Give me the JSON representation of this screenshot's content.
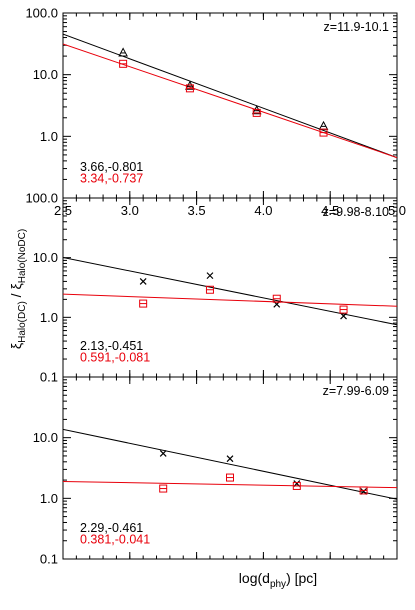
{
  "figure": {
    "xlabel_main": "log(d",
    "xlabel_sub": "phy",
    "xlabel_tail": ") [pc]",
    "ylabel_xi_a": "ξ",
    "ylabel_sub_a": "Halo(DC)",
    "ylabel_sep": " / ",
    "ylabel_xi_b": "ξ",
    "ylabel_sub_b": "Halo(NoDC)"
  },
  "colors": {
    "black": "#000000",
    "red": "#e8000b"
  },
  "chart_data": [
    {
      "type": "scatter",
      "title": "z=11.9-10.1",
      "xlim": [
        2.5,
        5.0
      ],
      "ylim": [
        0.1,
        100
      ],
      "yscale": "log",
      "grid": false,
      "xticklabels": [
        "2.5",
        "3.0",
        "3.5",
        "4.0",
        "4.5",
        "5.0"
      ],
      "yticks": [
        1.0,
        10.0,
        100.0
      ],
      "yticklabels": [
        "1.0",
        "10.0",
        "100.0"
      ],
      "series": [
        {
          "color": "black",
          "marker": "triangle",
          "x": [
            2.95,
            3.45,
            3.95,
            4.45
          ],
          "y": [
            22.5,
            6.5,
            2.6,
            1.45
          ]
        },
        {
          "color": "red",
          "marker": "square",
          "x": [
            2.95,
            3.45,
            3.95,
            4.45
          ],
          "y": [
            15.0,
            6.0,
            2.4,
            1.15
          ]
        }
      ],
      "fits": [
        {
          "color": "black",
          "intercept": 3.66,
          "slope": -0.801,
          "label": "3.66,-0.801"
        },
        {
          "color": "red",
          "intercept": 3.34,
          "slope": -0.737,
          "label": "3.34,-0.737"
        }
      ]
    },
    {
      "type": "scatter",
      "title": "z=9.98-8.10",
      "xlim": [
        2.5,
        5.0
      ],
      "ylim": [
        0.1,
        100
      ],
      "yscale": "log",
      "grid": false,
      "xticklabels": [],
      "yticks": [
        0.1,
        1.0,
        10.0,
        100.0
      ],
      "yticklabels": [
        "0.1",
        "1.0",
        "10.0",
        "100.0"
      ],
      "series": [
        {
          "color": "black",
          "marker": "cross",
          "x": [
            3.1,
            3.6,
            4.1,
            4.6
          ],
          "y": [
            4.0,
            5.0,
            1.65,
            1.05
          ]
        },
        {
          "color": "red",
          "marker": "square",
          "x": [
            3.1,
            3.6,
            4.1,
            4.6
          ],
          "y": [
            1.7,
            2.9,
            2.05,
            1.35
          ]
        }
      ],
      "fits": [
        {
          "color": "black",
          "intercept": 2.13,
          "slope": -0.451,
          "label": "2.13,-0.451"
        },
        {
          "color": "red",
          "intercept": 0.591,
          "slope": -0.081,
          "label": "0.591,-0.081"
        }
      ]
    },
    {
      "type": "scatter",
      "title": "z=7.99-6.09",
      "xlim": [
        2.5,
        5.0
      ],
      "ylim": [
        0.1,
        100
      ],
      "yscale": "log",
      "grid": false,
      "xticklabels": [],
      "yticks": [
        0.1,
        1.0,
        10.0
      ],
      "yticklabels": [
        "0.1",
        "1.0",
        "10.0"
      ],
      "series": [
        {
          "color": "black",
          "marker": "cross",
          "x": [
            3.25,
            3.75,
            4.25,
            4.75
          ],
          "y": [
            5.5,
            4.5,
            1.75,
            1.3
          ]
        },
        {
          "color": "red",
          "marker": "square",
          "x": [
            3.25,
            3.75,
            4.25,
            4.75
          ],
          "y": [
            1.45,
            2.2,
            1.6,
            1.35
          ]
        }
      ],
      "fits": [
        {
          "color": "black",
          "intercept": 2.29,
          "slope": -0.461,
          "label": "2.29,-0.461"
        },
        {
          "color": "red",
          "intercept": 0.381,
          "slope": -0.041,
          "label": "0.381,-0.041"
        }
      ]
    }
  ]
}
